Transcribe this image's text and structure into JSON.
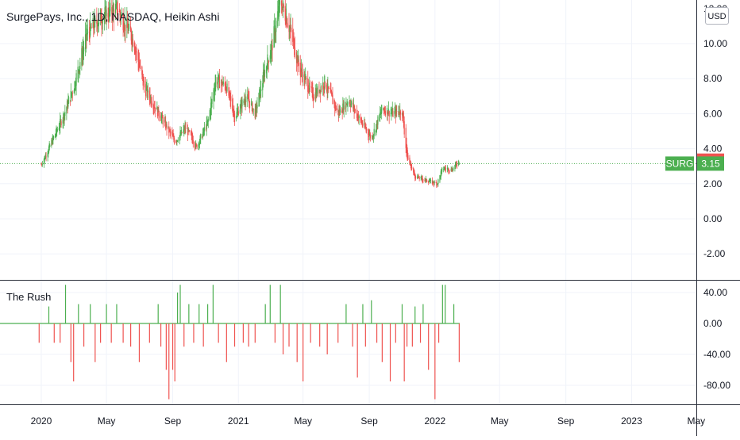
{
  "symbol_title": "SurgePays, Inc., 1D, NASDAQ, Heikin Ashi",
  "currency_button": "USD",
  "indicator_title": "The Rush",
  "price_badges": {
    "last_close": "3.32",
    "ticker": "SURG",
    "ticker_price": "3.15"
  },
  "colors": {
    "up": "#26a69a",
    "up_candle": "#4caf50",
    "down": "#ef5350",
    "badge_red": "#ef5350",
    "badge_green": "#4caf50",
    "grid": "#f0f3fa",
    "separator": "#2a2e39"
  },
  "chart_data": [
    {
      "type": "candlestick",
      "style": "Heikin Ashi",
      "ylim": [
        -3.0,
        12.5
      ],
      "y_ticks": [
        10,
        8,
        6,
        4,
        2,
        0,
        -2
      ],
      "y_tick_labels": [
        "10.00",
        "8.00",
        "6.00",
        "4.00",
        "2.00",
        "0.00",
        "-2.00"
      ],
      "x_ticks": [
        "2020",
        "May",
        "Sep",
        "2021",
        "May",
        "Sep",
        "2022",
        "May",
        "Sep",
        "2023",
        "May"
      ],
      "grid": true,
      "price_line": 3.15,
      "close_path": [
        {
          "date": "2020-01-01",
          "close": 3.1
        },
        {
          "date": "2020-02-10",
          "close": 5.8
        },
        {
          "date": "2020-03-01",
          "close": 7.5
        },
        {
          "date": "2020-03-25",
          "close": 10.5
        },
        {
          "date": "2020-04-20",
          "close": 11.5
        },
        {
          "date": "2020-05-20",
          "close": 12.0
        },
        {
          "date": "2020-06-20",
          "close": 10.2
        },
        {
          "date": "2020-07-10",
          "close": 7.5
        },
        {
          "date": "2020-08-01",
          "close": 6.3
        },
        {
          "date": "2020-08-25",
          "close": 5.0
        },
        {
          "date": "2020-09-05",
          "close": 4.4
        },
        {
          "date": "2020-09-25",
          "close": 5.2
        },
        {
          "date": "2020-10-15",
          "close": 4.1
        },
        {
          "date": "2020-11-05",
          "close": 5.5
        },
        {
          "date": "2020-11-20",
          "close": 8.0
        },
        {
          "date": "2020-12-10",
          "close": 7.5
        },
        {
          "date": "2020-12-25",
          "close": 5.8
        },
        {
          "date": "2021-01-15",
          "close": 7.0
        },
        {
          "date": "2021-02-01",
          "close": 6.0
        },
        {
          "date": "2021-02-20",
          "close": 8.6
        },
        {
          "date": "2021-03-05",
          "close": 10.0
        },
        {
          "date": "2021-03-20",
          "close": 12.5
        },
        {
          "date": "2021-04-05",
          "close": 11.0
        },
        {
          "date": "2021-04-25",
          "close": 8.5
        },
        {
          "date": "2021-05-20",
          "close": 7.0
        },
        {
          "date": "2021-06-10",
          "close": 7.8
        },
        {
          "date": "2021-07-05",
          "close": 6.0
        },
        {
          "date": "2021-07-25",
          "close": 6.8
        },
        {
          "date": "2021-08-15",
          "close": 5.6
        },
        {
          "date": "2021-09-05",
          "close": 4.6
        },
        {
          "date": "2021-09-25",
          "close": 6.3
        },
        {
          "date": "2021-10-15",
          "close": 6.0
        },
        {
          "date": "2021-11-01",
          "close": 6.2
        },
        {
          "date": "2021-11-10",
          "close": 3.5
        },
        {
          "date": "2021-11-25",
          "close": 2.4
        },
        {
          "date": "2021-12-15",
          "close": 2.2
        },
        {
          "date": "2022-01-05",
          "close": 2.0
        },
        {
          "date": "2022-01-15",
          "close": 2.9
        },
        {
          "date": "2022-02-01",
          "close": 2.8
        },
        {
          "date": "2022-02-15",
          "close": 3.32
        }
      ]
    },
    {
      "type": "histogram",
      "name": "The Rush",
      "ylim": [
        -105,
        55
      ],
      "y_ticks": [
        40,
        0,
        -40,
        -80
      ],
      "y_tick_labels": [
        "40.00",
        "0.00",
        "-40.00",
        "-80.00"
      ],
      "zero_line": true,
      "bars": [
        {
          "date": "2019-12-28",
          "value": -25
        },
        {
          "date": "2020-01-15",
          "value": 22
        },
        {
          "date": "2020-01-25",
          "value": -25
        },
        {
          "date": "2020-02-05",
          "value": -25
        },
        {
          "date": "2020-02-15",
          "value": 50
        },
        {
          "date": "2020-02-25",
          "value": -50
        },
        {
          "date": "2020-03-01",
          "value": -75
        },
        {
          "date": "2020-03-10",
          "value": 25
        },
        {
          "date": "2020-03-20",
          "value": -30
        },
        {
          "date": "2020-04-01",
          "value": 25
        },
        {
          "date": "2020-04-10",
          "value": -50
        },
        {
          "date": "2020-04-20",
          "value": -25
        },
        {
          "date": "2020-05-01",
          "value": 25
        },
        {
          "date": "2020-05-10",
          "value": -25
        },
        {
          "date": "2020-05-20",
          "value": 25
        },
        {
          "date": "2020-06-01",
          "value": -25
        },
        {
          "date": "2020-06-15",
          "value": -30
        },
        {
          "date": "2020-07-01",
          "value": -50
        },
        {
          "date": "2020-07-20",
          "value": -25
        },
        {
          "date": "2020-08-05",
          "value": 25
        },
        {
          "date": "2020-08-10",
          "value": -30
        },
        {
          "date": "2020-08-20",
          "value": -60
        },
        {
          "date": "2020-08-25",
          "value": -98
        },
        {
          "date": "2020-09-01",
          "value": -60
        },
        {
          "date": "2020-09-05",
          "value": -75
        },
        {
          "date": "2020-09-10",
          "value": 40
        },
        {
          "date": "2020-09-15",
          "value": 50
        },
        {
          "date": "2020-09-22",
          "value": -30
        },
        {
          "date": "2020-10-01",
          "value": 25
        },
        {
          "date": "2020-10-10",
          "value": -25
        },
        {
          "date": "2020-10-20",
          "value": 25
        },
        {
          "date": "2020-10-28",
          "value": -30
        },
        {
          "date": "2020-11-05",
          "value": 25
        },
        {
          "date": "2020-11-15",
          "value": 50
        },
        {
          "date": "2020-11-25",
          "value": -25
        },
        {
          "date": "2020-12-10",
          "value": -50
        },
        {
          "date": "2020-12-25",
          "value": -30
        },
        {
          "date": "2021-01-10",
          "value": -25
        },
        {
          "date": "2021-01-20",
          "value": -30
        },
        {
          "date": "2021-02-01",
          "value": -25
        },
        {
          "date": "2021-02-20",
          "value": 25
        },
        {
          "date": "2021-03-01",
          "value": 50
        },
        {
          "date": "2021-03-10",
          "value": -25
        },
        {
          "date": "2021-03-20",
          "value": 50
        },
        {
          "date": "2021-03-25",
          "value": -40
        },
        {
          "date": "2021-04-05",
          "value": -30
        },
        {
          "date": "2021-04-20",
          "value": -50
        },
        {
          "date": "2021-05-01",
          "value": -75
        },
        {
          "date": "2021-05-15",
          "value": -25
        },
        {
          "date": "2021-06-01",
          "value": -30
        },
        {
          "date": "2021-06-15",
          "value": -40
        },
        {
          "date": "2021-07-05",
          "value": -25
        },
        {
          "date": "2021-07-20",
          "value": 25
        },
        {
          "date": "2021-08-01",
          "value": -30
        },
        {
          "date": "2021-08-10",
          "value": -70
        },
        {
          "date": "2021-08-20",
          "value": 25
        },
        {
          "date": "2021-08-25",
          "value": -30
        },
        {
          "date": "2021-09-05",
          "value": 30
        },
        {
          "date": "2021-09-15",
          "value": -25
        },
        {
          "date": "2021-09-25",
          "value": -50
        },
        {
          "date": "2021-10-10",
          "value": -75
        },
        {
          "date": "2021-10-20",
          "value": -25
        },
        {
          "date": "2021-11-01",
          "value": 25
        },
        {
          "date": "2021-11-05",
          "value": -75
        },
        {
          "date": "2021-11-10",
          "value": -30
        },
        {
          "date": "2021-11-20",
          "value": -30
        },
        {
          "date": "2021-11-25",
          "value": 22
        },
        {
          "date": "2021-12-05",
          "value": -25
        },
        {
          "date": "2021-12-10",
          "value": 25
        },
        {
          "date": "2021-12-20",
          "value": -60
        },
        {
          "date": "2022-01-01",
          "value": -98
        },
        {
          "date": "2022-01-08",
          "value": -25
        },
        {
          "date": "2022-01-15",
          "value": 50
        },
        {
          "date": "2022-01-20",
          "value": 50
        },
        {
          "date": "2022-02-05",
          "value": 25
        },
        {
          "date": "2022-02-15",
          "value": -50
        }
      ]
    }
  ]
}
